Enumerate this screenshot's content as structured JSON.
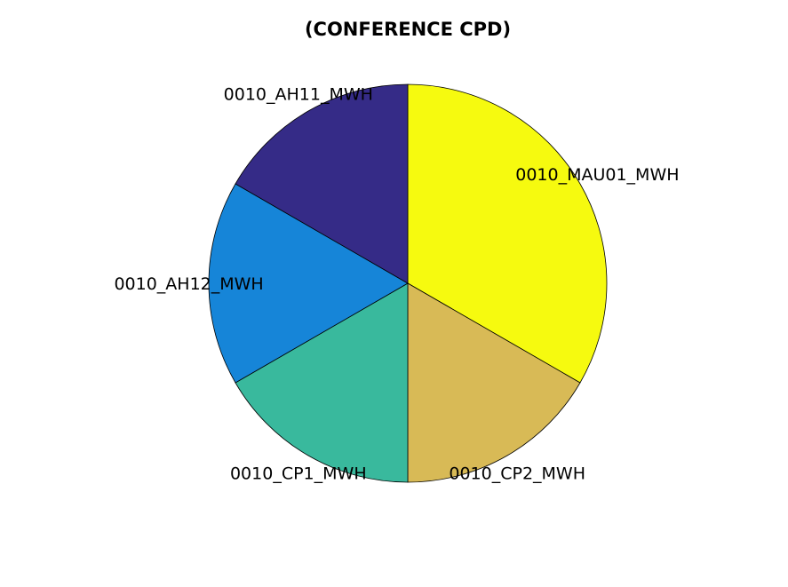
{
  "chart_data": {
    "type": "pie",
    "title": "(CONFERENCE CPD)",
    "slices": [
      {
        "label": "0010_MAU01_MWH",
        "value": 2,
        "color": "#f6fa0f"
      },
      {
        "label": "0010_CP2_MWH",
        "value": 1,
        "color": "#d8ba56"
      },
      {
        "label": "0010_CP1_MWH",
        "value": 1,
        "color": "#39b99d"
      },
      {
        "label": "0010_AH12_MWH",
        "value": 1,
        "color": "#1685d8"
      },
      {
        "label": "0010_AH11_MWH",
        "value": 1,
        "color": "#352b87"
      }
    ],
    "start": "top",
    "direction": "clockwise"
  }
}
